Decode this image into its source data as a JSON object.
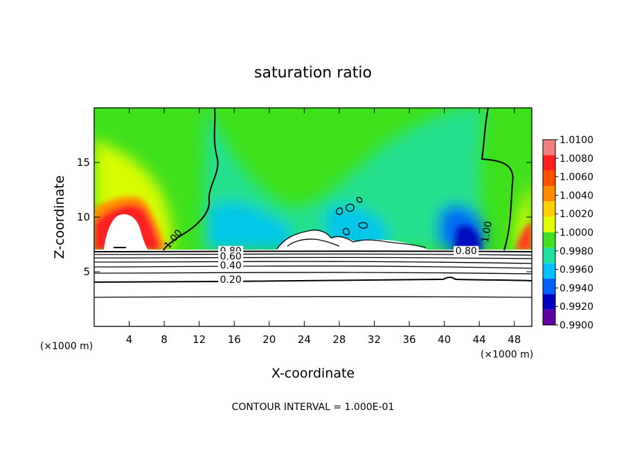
{
  "chart_data": {
    "type": "heatmap",
    "title": "saturation ratio",
    "xlabel": "X-coordinate",
    "ylabel": "Z-coordinate",
    "x_unit": "(×1000 m)",
    "y_unit": "(×1000 m)",
    "xlim": [
      0,
      50
    ],
    "ylim": [
      0,
      20
    ],
    "x_ticks": [
      4,
      8,
      12,
      16,
      20,
      24,
      28,
      32,
      36,
      40,
      44,
      48
    ],
    "y_ticks": [
      5,
      10,
      15
    ],
    "colorbar": {
      "min": 0.99,
      "max": 1.01,
      "labels": [
        "1.0100",
        "1.0080",
        "1.0060",
        "1.0040",
        "1.0020",
        "1.0000",
        "0.9980",
        "0.9960",
        "0.9940",
        "0.9920",
        "0.9900"
      ],
      "colors": [
        "#f08080",
        "#ff2020",
        "#ff5000",
        "#ff8c00",
        "#ffd000",
        "#e0ff00",
        "#40e020",
        "#20e0a0",
        "#00c0ff",
        "#0060ff",
        "#0000c0",
        "#6000a0"
      ]
    },
    "contour_interval": "CONTOUR INTERVAL = 1.000E-01",
    "contour_labels": [
      {
        "text": "1.00",
        "x": 9.3,
        "z": 7.8
      },
      {
        "text": "1.00",
        "x": 45.2,
        "z": 8.6
      },
      {
        "text": "0.80",
        "x": 42.5,
        "z": 6.6
      },
      {
        "text": "0.80",
        "x": 15.6,
        "z": 6.6
      },
      {
        "text": "0.60",
        "x": 15.6,
        "z": 6.1
      },
      {
        "text": "0.40",
        "x": 15.6,
        "z": 5.3
      },
      {
        "text": "0.20",
        "x": 15.6,
        "z": 4.0
      }
    ],
    "grid": false
  }
}
